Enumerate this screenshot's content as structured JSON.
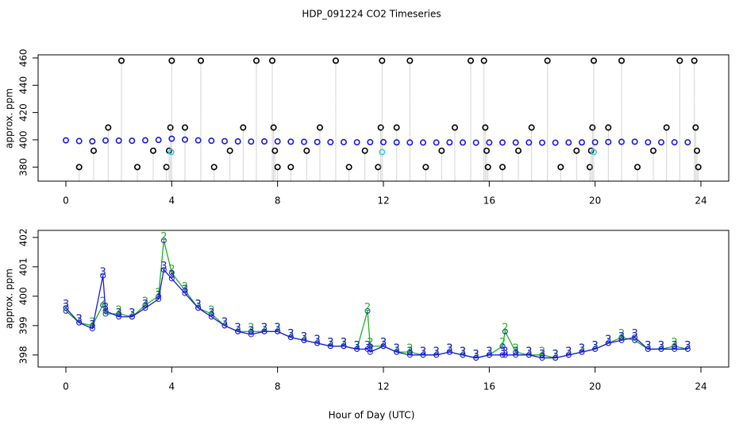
{
  "chart_data": [
    {
      "type": "scatter",
      "title": "HDP_091224  CO2 Timeseries",
      "y_label": "approx. ppm",
      "xlim": [
        -1.05,
        25.05
      ],
      "xticks": [
        0,
        4,
        8,
        12,
        16,
        20,
        24
      ],
      "ylim": [
        369.7,
        462.3
      ],
      "yticks": [
        380,
        400,
        420,
        440,
        460
      ],
      "series": [
        {
          "style": "spike",
          "color": "#000000",
          "x": [
            0.5,
            1.05,
            1.6,
            2.1,
            2.7,
            3.3,
            3.8,
            3.9,
            3.95,
            4.0,
            4.5,
            5.1,
            5.6,
            6.2,
            6.7,
            7.2,
            7.8,
            7.85,
            7.9,
            8.0,
            8.5,
            9.1,
            9.6,
            10.2,
            10.7,
            11.3,
            11.8,
            11.9,
            11.95,
            12.5,
            13.0,
            13.6,
            14.2,
            14.7,
            15.3,
            15.8,
            15.85,
            15.9,
            15.95,
            16.5,
            17.1,
            17.6,
            18.2,
            18.7,
            19.3,
            19.8,
            19.85,
            19.9,
            19.95,
            20.5,
            21.0,
            21.6,
            22.2,
            22.7,
            23.2,
            23.75,
            23.8,
            23.85,
            23.9
          ],
          "values": [
            380,
            392,
            409,
            458,
            380,
            392,
            380,
            392,
            409,
            458,
            409,
            458,
            380,
            392,
            409,
            458,
            458,
            409,
            392,
            380,
            380,
            392,
            409,
            458,
            380,
            392,
            380,
            409,
            458,
            409,
            458,
            380,
            392,
            409,
            458,
            458,
            409,
            392,
            380,
            380,
            392,
            409,
            458,
            380,
            392,
            380,
            392,
            409,
            458,
            409,
            458,
            380,
            392,
            409,
            458,
            458,
            409,
            392,
            380
          ]
        },
        {
          "style": "points",
          "color": "#1a1adb",
          "x": [
            0,
            0.5,
            1,
            1.5,
            2,
            2.5,
            3,
            3.5,
            4,
            4.5,
            5,
            5.5,
            6,
            6.5,
            7,
            7.5,
            8,
            8.5,
            9,
            9.5,
            10,
            10.5,
            11,
            11.5,
            12,
            12.5,
            13,
            13.5,
            14,
            14.5,
            15,
            15.5,
            16,
            16.5,
            17,
            17.5,
            18,
            18.5,
            19,
            19.5,
            20,
            20.5,
            21,
            21.5,
            22,
            22.5,
            23,
            23.5
          ],
          "values": [
            399.6,
            399.1,
            398.9,
            399.5,
            399.4,
            399.3,
            399.6,
            399.9,
            400.8,
            400.1,
            399.6,
            399.3,
            399.0,
            398.8,
            398.7,
            398.8,
            398.8,
            398.6,
            398.5,
            398.4,
            398.3,
            398.3,
            398.2,
            398.3,
            398.3,
            398.1,
            398.0,
            398.0,
            398.0,
            398.1,
            398.0,
            397.9,
            398.0,
            398.0,
            398.0,
            398.0,
            397.9,
            397.9,
            398.0,
            398.1,
            398.2,
            398.4,
            398.5,
            398.6,
            398.2,
            398.2,
            398.2,
            398.2
          ]
        },
        {
          "style": "points",
          "color": "#33ccdd",
          "x": [
            3.98,
            11.95,
            19.95
          ],
          "values": [
            391,
            391,
            391
          ]
        }
      ]
    },
    {
      "type": "line",
      "y_label": "approx. ppm",
      "x_label": "Hour of Day (UTC)",
      "xlim": [
        -1.05,
        25.05
      ],
      "xticks": [
        0,
        4,
        8,
        12,
        16,
        20,
        24
      ],
      "ylim": [
        397.59,
        402.24
      ],
      "yticks": [
        398,
        399,
        400,
        401,
        402
      ],
      "x": [
        0,
        0.5,
        1,
        1.4,
        1.5,
        2,
        2.5,
        3,
        3.5,
        3.7,
        4,
        4.5,
        5,
        5.5,
        6,
        6.5,
        7,
        7.5,
        8,
        8.5,
        9,
        9.5,
        10,
        10.5,
        11,
        11.4,
        11.5,
        12,
        12.5,
        13,
        13.5,
        14,
        14.5,
        15,
        15.5,
        16,
        16.5,
        16.6,
        17,
        17.5,
        18,
        18.5,
        19,
        19.5,
        20,
        20.5,
        21,
        21.5,
        22,
        22.5,
        23,
        23.5
      ],
      "series": [
        {
          "marker": "2",
          "color": "#22b022",
          "values": [
            399.5,
            399.1,
            399.0,
            399.7,
            399.4,
            399.4,
            399.3,
            399.7,
            400.0,
            401.9,
            400.8,
            400.2,
            399.6,
            399.4,
            399.0,
            398.8,
            398.8,
            398.8,
            398.8,
            398.6,
            398.5,
            398.4,
            398.3,
            398.3,
            398.2,
            399.5,
            398.3,
            398.3,
            398.1,
            398.1,
            398.0,
            398.0,
            398.1,
            398.0,
            397.9,
            398.0,
            398.3,
            398.8,
            398.1,
            398.0,
            398.0,
            397.9,
            398.0,
            398.1,
            398.2,
            398.4,
            398.6,
            398.5,
            398.2,
            398.2,
            398.3,
            398.2
          ]
        },
        {
          "marker": "3",
          "color": "#1a1adb",
          "values": [
            399.6,
            399.1,
            398.9,
            400.7,
            399.5,
            399.3,
            399.3,
            399.6,
            399.9,
            400.9,
            400.6,
            400.1,
            399.6,
            399.3,
            399.0,
            398.8,
            398.7,
            398.8,
            398.8,
            398.6,
            398.5,
            398.4,
            398.3,
            398.3,
            398.2,
            398.2,
            398.1,
            398.3,
            398.1,
            398.0,
            398.0,
            398.0,
            398.1,
            398.0,
            397.9,
            398.0,
            398.0,
            398.0,
            398.0,
            398.0,
            397.9,
            397.9,
            398.0,
            398.1,
            398.2,
            398.4,
            398.5,
            398.6,
            398.2,
            398.2,
            398.2,
            398.2
          ]
        }
      ]
    }
  ]
}
